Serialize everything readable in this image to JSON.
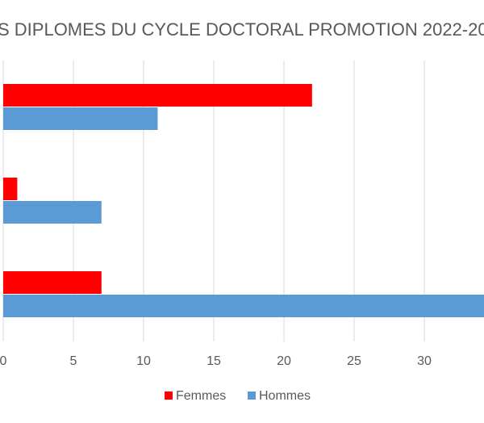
{
  "chart_data": {
    "type": "hbar",
    "title": "S DIPLOMES DU CYCLE DOCTORAL PROMOTION 2022-20",
    "categories": [
      null,
      null,
      null
    ],
    "series": [
      {
        "name": "Femmes",
        "color": "#ff0000",
        "values": [
          22,
          1,
          7
        ]
      },
      {
        "name": "Hommes",
        "color": "#5b9bd5",
        "values": [
          11,
          7,
          35
        ]
      }
    ],
    "xlim": [
      0,
      34.25
    ],
    "xticks": [
      0,
      5,
      10,
      15,
      20,
      25,
      30
    ],
    "grid": true,
    "legend": "bottom"
  }
}
